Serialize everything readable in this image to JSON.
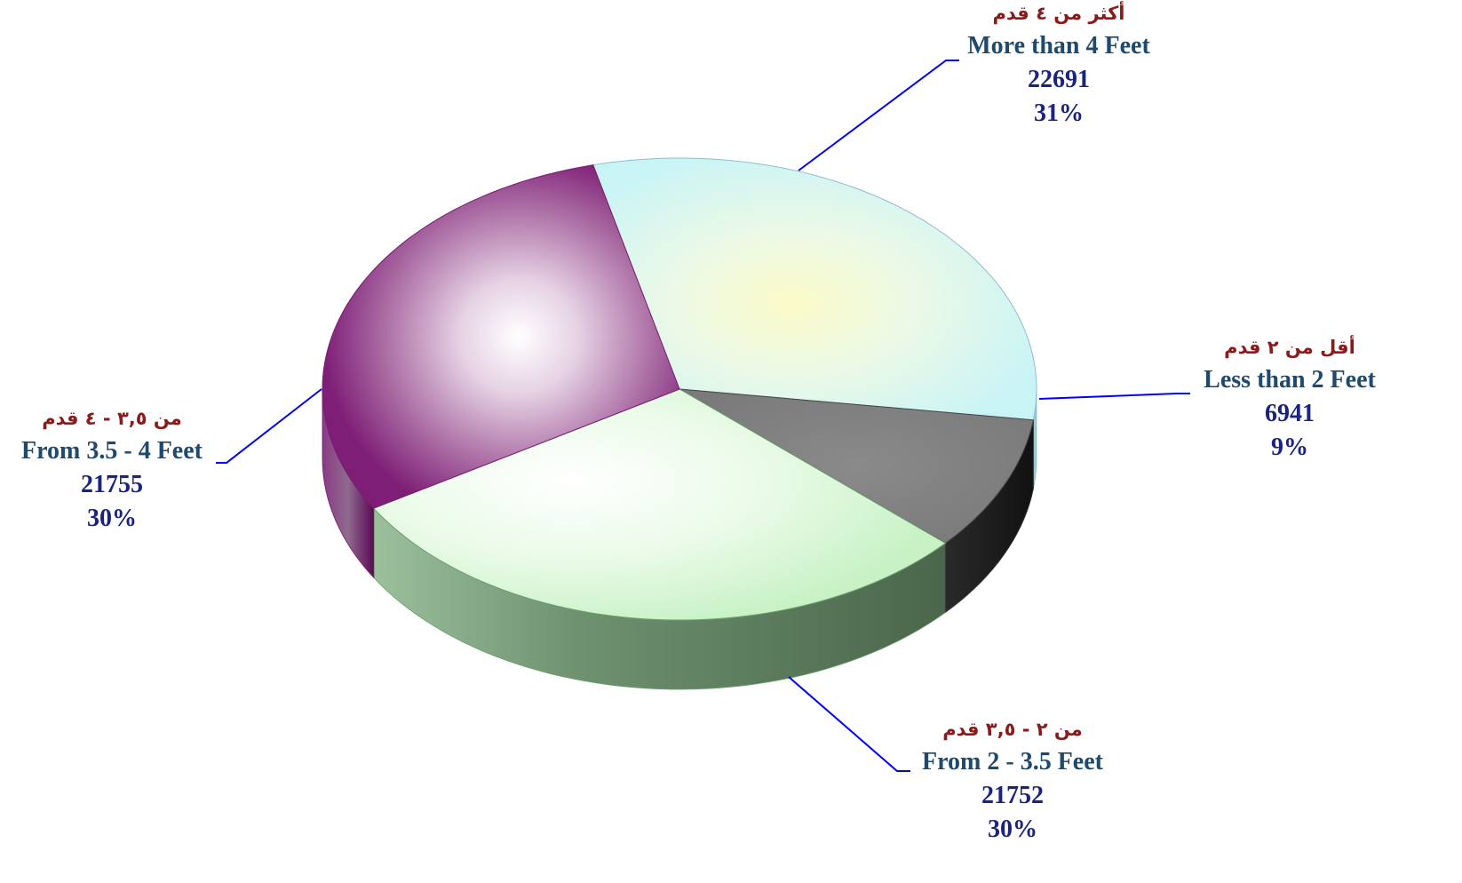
{
  "chart_data": {
    "type": "pie",
    "slices": [
      {
        "label_ar": "أكثر من ٤ قدم",
        "label_en": "More than 4 Feet",
        "value": 22691,
        "percent_label": "31%",
        "color": "#c9f4f6"
      },
      {
        "label_ar": "أقل من ٢ قدم",
        "label_en": "Less than 2 Feet",
        "value": 6941,
        "percent_label": "9%",
        "color": "#808080"
      },
      {
        "label_ar": "من ٢ - ٣,٥ قدم",
        "label_en": "From 2 - 3.5 Feet",
        "value": 21752,
        "percent_label": "30%",
        "color": "#d6f7d4"
      },
      {
        "label_ar": "من ٣,٥ - ٤ قدم",
        "label_en": "From 3.5 - 4 Feet",
        "value": 21755,
        "percent_label": "30%",
        "color": "#8a2d80"
      }
    ],
    "colors": {
      "leader_line": "#0000ff",
      "label_en_text": "#1e4a6e",
      "label_ar_text": "#8b1a1a",
      "value_text": "#1a237e"
    }
  }
}
